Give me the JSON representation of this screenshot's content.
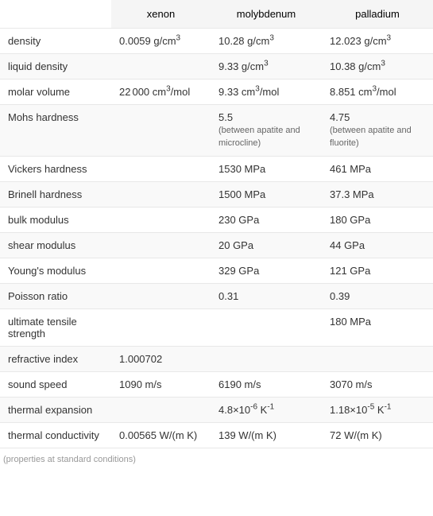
{
  "columns": [
    "",
    "xenon",
    "molybdenum",
    "palladium"
  ],
  "rows": [
    {
      "label": "density",
      "xenon": "0.0059 g/cm³",
      "moly": "10.28 g/cm³",
      "pall": "12.023 g/cm³"
    },
    {
      "label": "liquid density",
      "xenon": "",
      "moly": "9.33 g/cm³",
      "pall": "10.38 g/cm³"
    },
    {
      "label": "molar volume",
      "xenon": "22000 cm³/mol",
      "moly": "9.33 cm³/mol",
      "pall": "8.851 cm³/mol"
    },
    {
      "label": "Mohs hardness",
      "xenon": "",
      "moly": "5.5",
      "moly_note": "(between apatite and microcline)",
      "pall": "4.75",
      "pall_note": "(between apatite and fluorite)"
    },
    {
      "label": "Vickers hardness",
      "xenon": "",
      "moly": "1530 MPa",
      "pall": "461 MPa"
    },
    {
      "label": "Brinell hardness",
      "xenon": "",
      "moly": "1500 MPa",
      "pall": "37.3 MPa"
    },
    {
      "label": "bulk modulus",
      "xenon": "",
      "moly": "230 GPa",
      "pall": "180 GPa"
    },
    {
      "label": "shear modulus",
      "xenon": "",
      "moly": "20 GPa",
      "pall": "44 GPa"
    },
    {
      "label": "Young's modulus",
      "xenon": "",
      "moly": "329 GPa",
      "pall": "121 GPa"
    },
    {
      "label": "Poisson ratio",
      "xenon": "",
      "moly": "0.31",
      "pall": "0.39"
    },
    {
      "label": "ultimate tensile strength",
      "xenon": "",
      "moly": "",
      "pall": "180 MPa"
    },
    {
      "label": "refractive index",
      "xenon": "1.000702",
      "moly": "",
      "pall": ""
    },
    {
      "label": "sound speed",
      "xenon": "1090 m/s",
      "moly": "6190 m/s",
      "pall": "3070 m/s"
    },
    {
      "label": "thermal expansion",
      "xenon": "",
      "moly": "4.8×10⁻⁶ K⁻¹",
      "pall": "1.18×10⁻⁵ K⁻¹"
    },
    {
      "label": "thermal conductivity",
      "xenon": "0.00565 W/(m K)",
      "moly": "139 W/(m K)",
      "pall": "72 W/(m K)"
    }
  ],
  "footnote": "(properties at standard conditions)"
}
